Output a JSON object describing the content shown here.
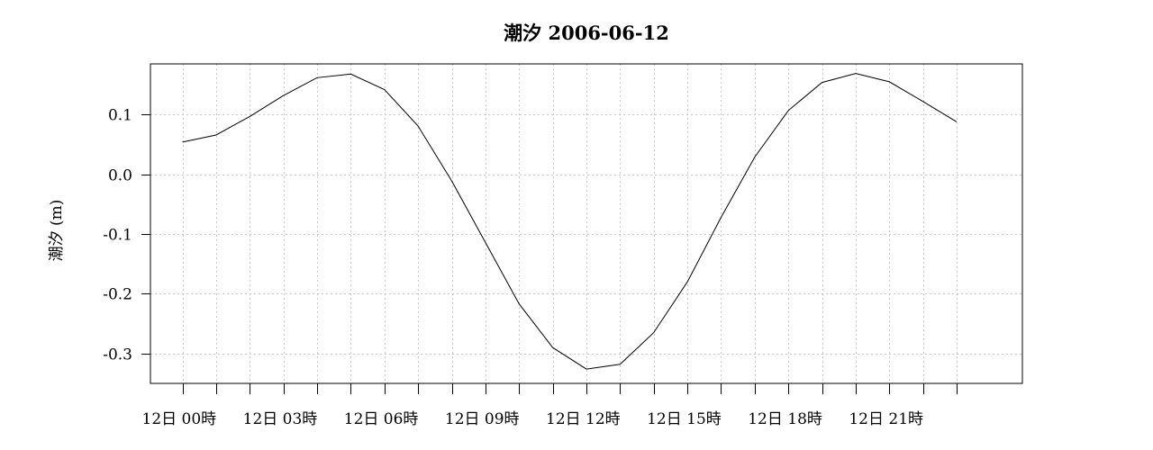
{
  "chart_data": {
    "type": "line",
    "title": "潮汐 2006-06-12",
    "ylabel": "潮汐 (m)",
    "xlabel": "",
    "ylim": [
      -0.35,
      0.185
    ],
    "xlim": [
      -0.95,
      24.95
    ],
    "grid": true,
    "y_ticks": [
      0.1,
      0.0,
      -0.1,
      -0.2,
      -0.3
    ],
    "y_tick_labels": [
      "0.1",
      "0.0",
      "-0.1",
      "-0.2",
      "-0.3"
    ],
    "x_ticks": [
      0,
      3,
      6,
      9,
      12,
      15,
      18,
      21
    ],
    "x_tick_labels": [
      "12日 00時",
      "12日 03時",
      "12日 06時",
      "12日 09時",
      "12日 12時",
      "12日 15時",
      "12日 18時",
      "12日 21時"
    ],
    "series": [
      {
        "x": [
          0,
          1,
          2,
          3,
          4,
          5,
          6,
          7,
          8,
          9,
          10,
          11,
          12,
          13,
          14,
          15,
          16,
          17,
          18,
          19,
          20,
          21,
          22,
          23
        ],
        "values": [
          0.054,
          0.066,
          0.097,
          0.132,
          0.162,
          0.168,
          0.142,
          0.081,
          -0.011,
          -0.114,
          -0.217,
          -0.29,
          -0.326,
          -0.318,
          -0.265,
          -0.18,
          -0.072,
          0.029,
          0.107,
          0.154,
          0.169,
          0.155,
          0.122,
          0.088
        ]
      }
    ]
  }
}
